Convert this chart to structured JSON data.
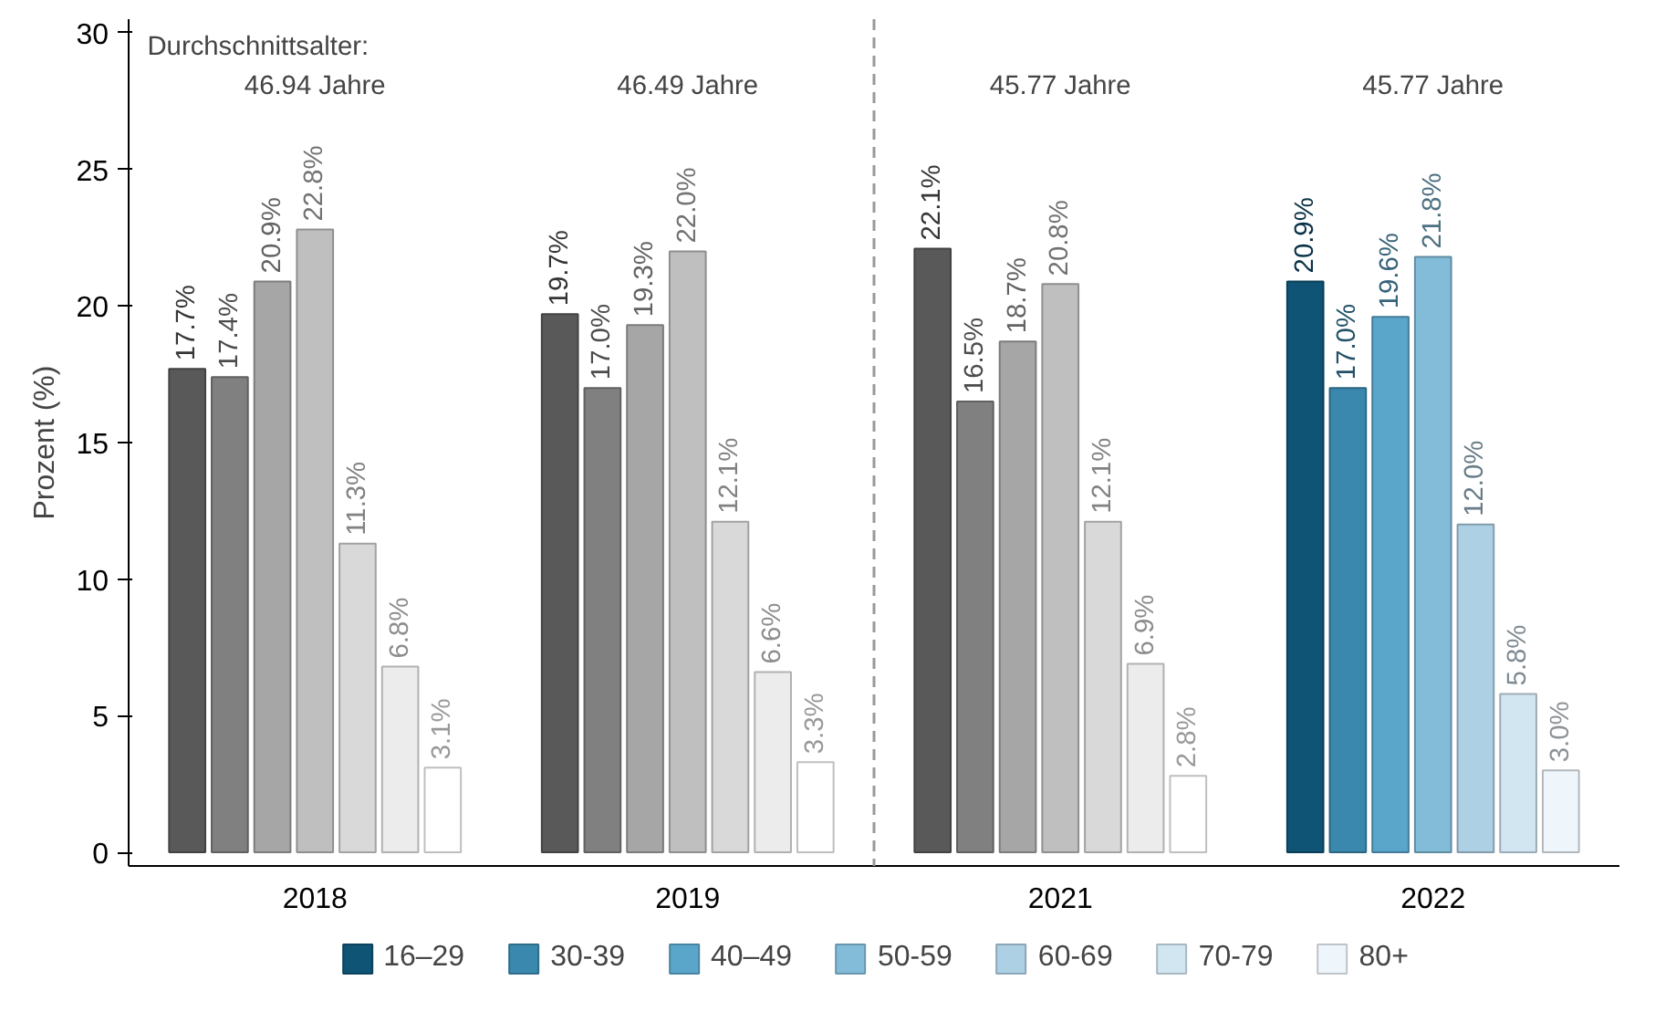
{
  "chart_data": {
    "type": "bar",
    "ylabel": "Prozent (%)",
    "categories": [
      "2018",
      "2019",
      "2021",
      "2022"
    ],
    "series": [
      {
        "name": "16–29",
        "color": "#0f5375",
        "colors": [
          "#595959",
          "#595959",
          "#595959",
          "#0f5375"
        ],
        "values": [
          17.7,
          19.7,
          22.1,
          20.9
        ],
        "value_labels": [
          "17.7%",
          "19.7%",
          "22.1%",
          "20.9%"
        ]
      },
      {
        "name": "30-39",
        "color": "#3a88ad",
        "colors": [
          "#808080",
          "#808080",
          "#808080",
          "#3a88ad"
        ],
        "values": [
          17.4,
          17.0,
          16.5,
          17.0
        ],
        "value_labels": [
          "17.4%",
          "17.0%",
          "16.5%",
          "17.0%"
        ]
      },
      {
        "name": "40–49",
        "color": "#5aa6cb",
        "colors": [
          "#a6a6a6",
          "#a6a6a6",
          "#a6a6a6",
          "#5aa6cb"
        ],
        "values": [
          20.9,
          19.3,
          18.7,
          19.6
        ],
        "value_labels": [
          "20.9%",
          "19.3%",
          "18.7%",
          "19.6%"
        ]
      },
      {
        "name": "50-59",
        "color": "#82bcd9",
        "colors": [
          "#bfbfbf",
          "#bfbfbf",
          "#bfbfbf",
          "#82bcd9"
        ],
        "values": [
          22.8,
          22.0,
          20.8,
          21.8
        ],
        "value_labels": [
          "22.8%",
          "22.0%",
          "20.8%",
          "21.8%"
        ]
      },
      {
        "name": "60-69",
        "color": "#aed0e4",
        "colors": [
          "#d9d9d9",
          "#d9d9d9",
          "#d9d9d9",
          "#aed0e4"
        ],
        "values": [
          11.3,
          12.1,
          12.1,
          12.0
        ],
        "value_labels": [
          "11.3%",
          "12.1%",
          "12.1%",
          "12.0%"
        ]
      },
      {
        "name": "70-79",
        "color": "#d2e6f2",
        "colors": [
          "#ececec",
          "#ececec",
          "#ececec",
          "#d2e6f2"
        ],
        "values": [
          6.8,
          6.6,
          6.9,
          5.8
        ],
        "value_labels": [
          "6.8%",
          "6.6%",
          "6.9%",
          "5.8%"
        ]
      },
      {
        "name": "80+",
        "color": "#eef6fb",
        "colors": [
          "#ffffff",
          "#ffffff",
          "#ffffff",
          "#eef6fb"
        ],
        "values": [
          3.1,
          3.3,
          2.8,
          3.0
        ],
        "value_labels": [
          "3.1%",
          "3.3%",
          "2.8%",
          "3.0%"
        ]
      }
    ],
    "ylim": [
      -0.5,
      30.5
    ],
    "yticks": [
      0,
      5,
      10,
      15,
      20,
      25,
      30
    ],
    "grid": false,
    "legend": "bottom",
    "annotations": [
      "Durchschnittsalter:",
      "46.94 Jahre",
      "46.49 Jahre",
      "45.77 Jahre",
      "45.77 Jahre"
    ]
  }
}
